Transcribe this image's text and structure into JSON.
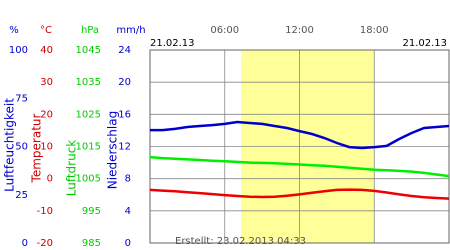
{
  "chart_data": {
    "type": "line",
    "date_left": "21.02.13",
    "date_right": "21.02.13",
    "footer": "Erstellt: 23.02.2013 04:33",
    "xlim": [
      0,
      24
    ],
    "xticks": [
      {
        "value": 6,
        "label": "06:00"
      },
      {
        "value": 12,
        "label": "12:00"
      },
      {
        "value": 18,
        "label": "18:00"
      }
    ],
    "daylight": [
      7.3,
      18
    ],
    "daylight_color": "#ffff99",
    "grid": true,
    "axes": [
      {
        "unit": "%",
        "name": "Luftfeuchtigkeit",
        "color": "#0000cc",
        "ylim": [
          0,
          100
        ],
        "yticks": [
          0,
          25,
          50,
          75,
          100
        ]
      },
      {
        "unit": "°C",
        "name": "Temperatur",
        "color": "#cc0000",
        "ylim": [
          -20,
          40
        ],
        "yticks": [
          -20,
          -10,
          0,
          10,
          20,
          30,
          40
        ]
      },
      {
        "unit": "hPa",
        "name": "Luftdruck",
        "color": "#00cc00",
        "ylim": [
          985,
          1045
        ],
        "yticks": [
          985,
          995,
          1005,
          1015,
          1025,
          1035,
          1045
        ]
      },
      {
        "unit": "mm/h",
        "name": "Niederschlag",
        "color": "#0000cc",
        "ylim": [
          0,
          24
        ],
        "yticks": [
          0,
          4,
          8,
          12,
          16,
          20,
          24
        ]
      }
    ],
    "x": [
      0,
      1,
      2,
      3,
      4,
      5,
      6,
      7,
      8,
      9,
      10,
      11,
      12,
      13,
      14,
      15,
      16,
      17,
      18,
      19,
      20,
      21,
      22,
      23,
      24
    ],
    "series": [
      {
        "axis": 2,
        "color": "#00ee00",
        "values": [
          1011.7,
          1011.4,
          1011.2,
          1011.0,
          1010.8,
          1010.6,
          1010.4,
          1010.2,
          1010.0,
          1009.9,
          1009.8,
          1009.6,
          1009.4,
          1009.2,
          1009.0,
          1008.7,
          1008.4,
          1008.1,
          1007.8,
          1007.6,
          1007.4,
          1007.2,
          1006.8,
          1006.3,
          1005.8
        ]
      },
      {
        "axis": 1,
        "color": "#ee0000",
        "values": [
          -3.5,
          -3.7,
          -3.9,
          -4.2,
          -4.5,
          -4.8,
          -5.1,
          -5.4,
          -5.6,
          -5.7,
          -5.6,
          -5.3,
          -4.9,
          -4.4,
          -3.9,
          -3.5,
          -3.4,
          -3.5,
          -3.8,
          -4.3,
          -4.9,
          -5.4,
          -5.8,
          -6.0,
          -6.2
        ]
      },
      {
        "axis": 0,
        "color": "#0000cc",
        "values": [
          58.5,
          58.5,
          59.1,
          60.1,
          60.6,
          61.1,
          61.7,
          62.7,
          62.2,
          61.7,
          60.6,
          59.6,
          58.0,
          56.5,
          54.4,
          51.8,
          49.7,
          49.2,
          49.7,
          50.3,
          53.9,
          57.0,
          59.6,
          60.1,
          60.6
        ]
      }
    ]
  }
}
